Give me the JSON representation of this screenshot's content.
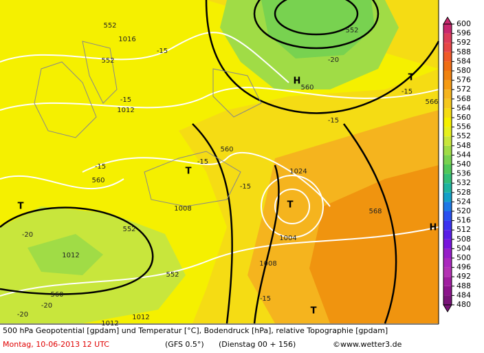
{
  "colorbar": {
    "ticks": [
      480,
      484,
      488,
      492,
      496,
      500,
      504,
      508,
      512,
      516,
      520,
      524,
      528,
      532,
      536,
      540,
      544,
      548,
      552,
      556,
      560,
      564,
      568,
      572,
      576,
      580,
      584,
      588,
      592,
      596,
      600
    ],
    "colors": [
      "#781478",
      "#8c148c",
      "#a01ea0",
      "#b432b4",
      "#aa28be",
      "#961ec8",
      "#7814dc",
      "#5a1ee6",
      "#3c32f0",
      "#2850f0",
      "#1e78e6",
      "#14a0c8",
      "#1eb4a0",
      "#32be78",
      "#50c85a",
      "#78d250",
      "#a0dc46",
      "#c8e63c",
      "#e6f01e",
      "#f5f000",
      "#f5dc14",
      "#f5c81e",
      "#f5b41e",
      "#f59b14",
      "#f0820f",
      "#f06e14",
      "#f05a28",
      "#e64646",
      "#dc3c5a",
      "#c8286e"
    ]
  },
  "map_labels": [
    "552",
    "1016",
    "-15",
    "552",
    "-15",
    "1012",
    "-15",
    "-20",
    "H",
    "560",
    "552",
    "T",
    "-15",
    "566",
    "-15",
    "560",
    "T",
    "-15",
    "-15",
    "1024",
    "T",
    "560",
    "1008",
    "T",
    "-20",
    "552",
    "568",
    "1012",
    "1004",
    "1008",
    "H",
    "552",
    "-20",
    "560",
    "-15",
    "-20",
    "1012",
    "T",
    "1012"
  ],
  "footer": {
    "line1": "500 hPa Geopotential [gpdam] und Temperatur [°C], Bodendruck [hPa], relative Topographie [gpdam]",
    "date": "Montag, 10-06-2013  12 UTC",
    "model": "(GFS 0.5°)",
    "run": "(Dienstag 00 + 156)",
    "credit": "©www.wetter3.de"
  }
}
